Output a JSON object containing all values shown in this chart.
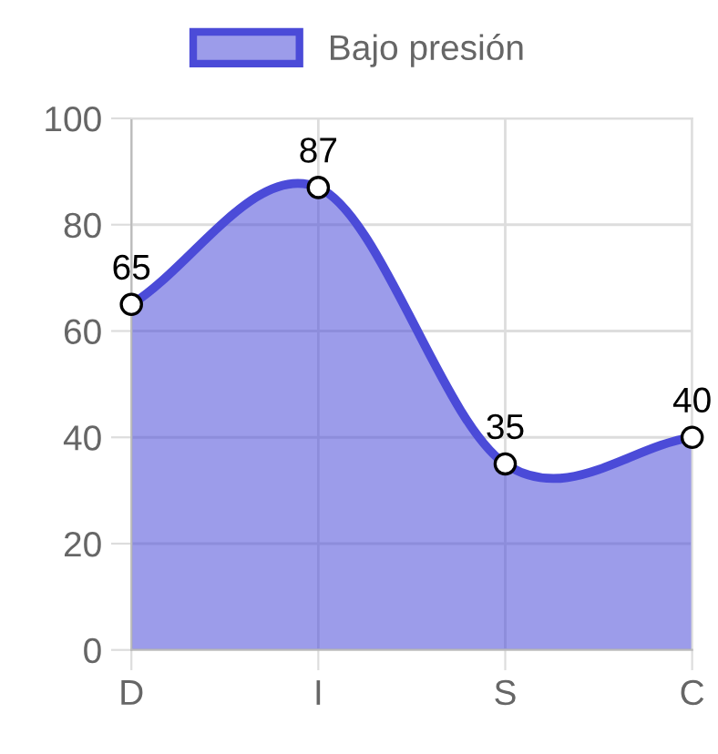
{
  "chart_data": {
    "type": "area",
    "categories": [
      "D",
      "I",
      "S",
      "C"
    ],
    "series": [
      {
        "name": "Bajo presión",
        "color": "#4b4bd8",
        "values": [
          65,
          87,
          35,
          40
        ]
      }
    ],
    "ylim": [
      0,
      100
    ],
    "yticks": [
      0,
      20,
      40,
      60,
      80,
      100
    ],
    "grid": true,
    "legend": "top",
    "marker": "circle",
    "data_labels": true
  }
}
